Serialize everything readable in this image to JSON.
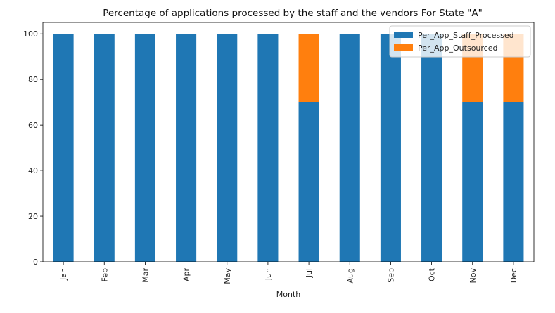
{
  "chart_data": {
    "type": "bar",
    "stacked": true,
    "title": "Percentage of applications processed by the staff and the vendors For State \"A\"",
    "xlabel": "Month",
    "ylabel": "",
    "ylim": [
      0,
      105
    ],
    "yticks": [
      0,
      20,
      40,
      60,
      80,
      100
    ],
    "categories": [
      "Jan",
      "Feb",
      "Mar",
      "Apr",
      "May",
      "Jun",
      "Jul",
      "Aug",
      "Sep",
      "Oct",
      "Nov",
      "Dec"
    ],
    "series": [
      {
        "name": "Per_App_Staff_Processed",
        "color": "#1f77b4",
        "values": [
          100,
          100,
          100,
          100,
          100,
          100,
          70,
          100,
          100,
          100,
          70,
          70
        ]
      },
      {
        "name": "Per_App_Outsourced",
        "color": "#ff7f0e",
        "values": [
          0,
          0,
          0,
          0,
          0,
          0,
          30,
          0,
          0,
          0,
          30,
          30
        ]
      }
    ],
    "legend": "top-right",
    "grid": false
  }
}
